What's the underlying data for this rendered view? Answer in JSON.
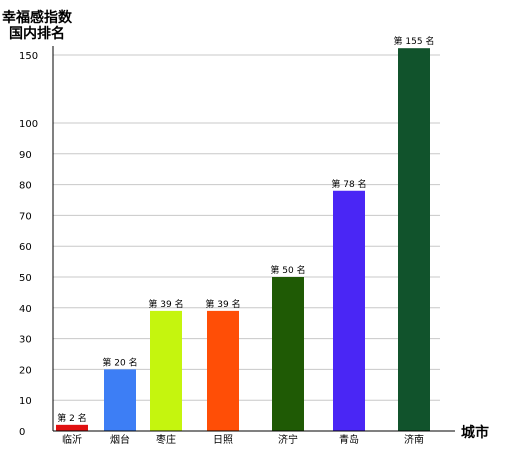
{
  "chart_data": {
    "type": "bar",
    "ylabel": [
      "幸福感指数",
      "国内排名"
    ],
    "xlabel": "城市",
    "categories": [
      "临沂",
      "烟台",
      "枣庄",
      "日照",
      "济宁",
      "青岛",
      "济南"
    ],
    "values": [
      2,
      20,
      39,
      39,
      50,
      78,
      155
    ],
    "data_labels": [
      "第 2 名",
      "第 20 名",
      "第 39 名",
      "第 39 名",
      "第 50 名",
      "第 78 名",
      "第 155 名"
    ],
    "colors": [
      "#e01010",
      "#3d7ef5",
      "#c5f50e",
      "#ff4e06",
      "#1f5a05",
      "#4a26f5",
      "#11532c"
    ],
    "ylim": [
      0,
      155
    ],
    "yticks": [
      0,
      10,
      20,
      30,
      40,
      50,
      60,
      70,
      80,
      90,
      100,
      150
    ],
    "grid": true,
    "legend": "none"
  }
}
